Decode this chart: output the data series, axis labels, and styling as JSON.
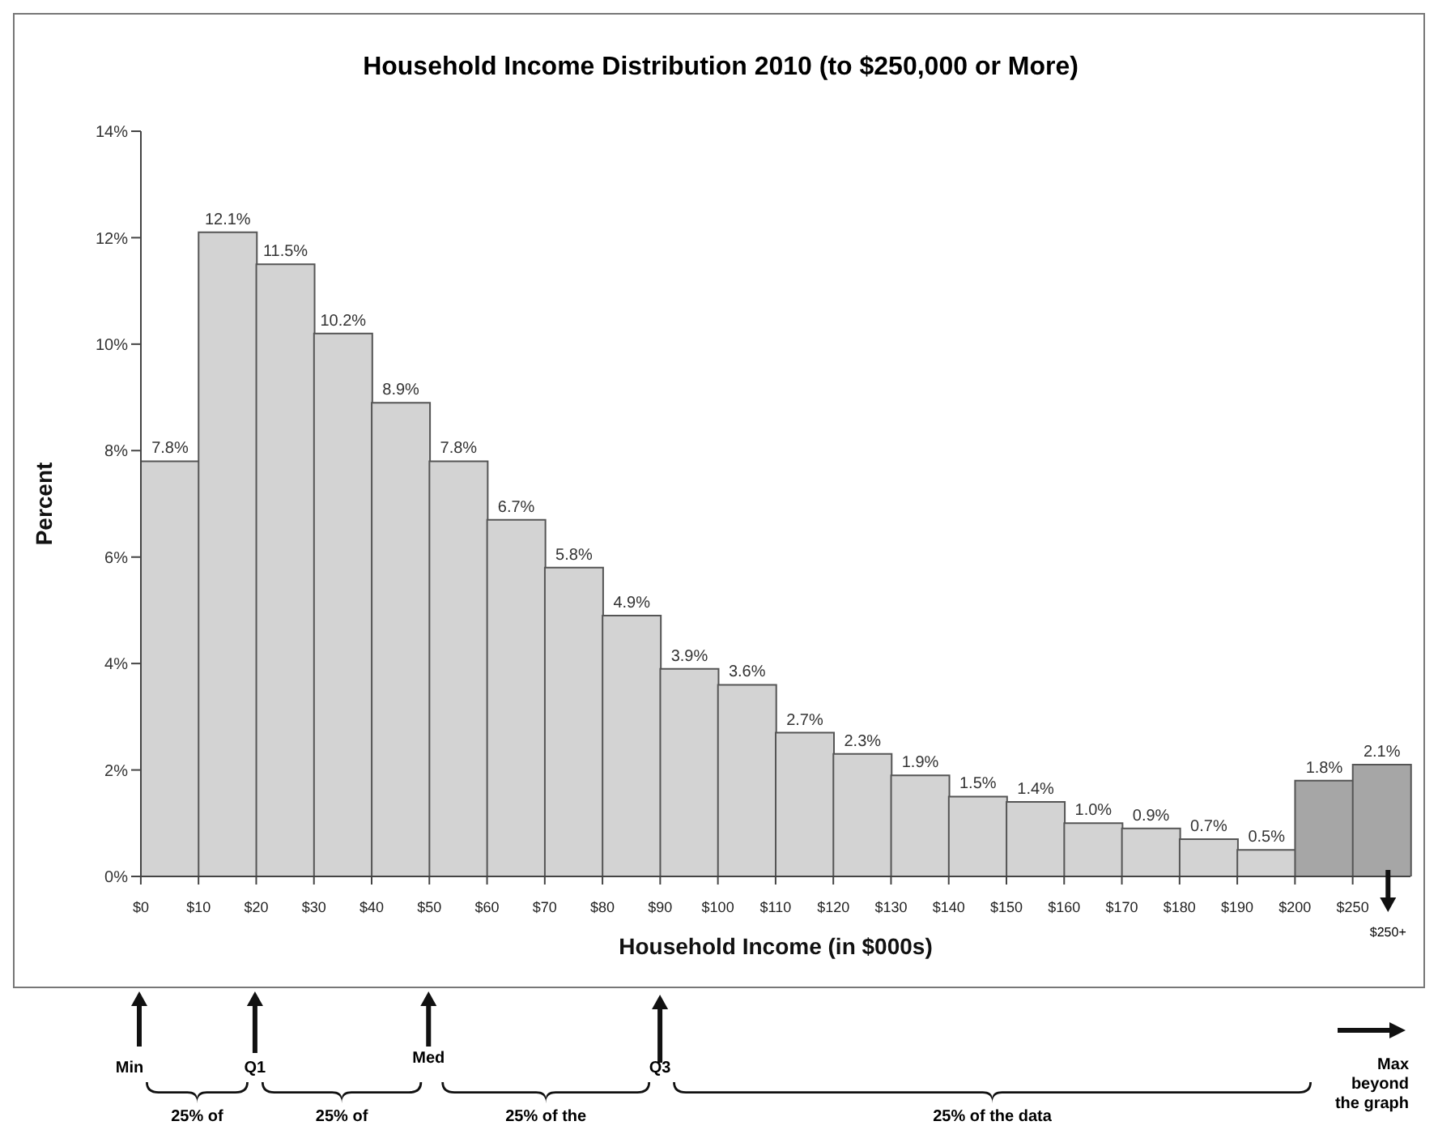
{
  "chart_data": {
    "type": "bar",
    "title": "Household Income Distribution 2010 (to $250,000 or More)",
    "xlabel": "Household Income (in $000s)",
    "ylabel": "Percent",
    "categories": [
      "$0",
      "$10",
      "$20",
      "$30",
      "$40",
      "$50",
      "$60",
      "$70",
      "$80",
      "$90",
      "$100",
      "$110",
      "$120",
      "$130",
      "$140",
      "$150",
      "$160",
      "$170",
      "$180",
      "$190",
      "$200",
      "$250"
    ],
    "values": [
      7.8,
      12.1,
      11.5,
      10.2,
      8.9,
      7.8,
      6.7,
      5.8,
      4.9,
      3.9,
      3.6,
      2.7,
      2.3,
      1.9,
      1.5,
      1.4,
      1.0,
      0.9,
      0.7,
      0.5,
      1.8,
      2.1
    ],
    "value_labels": [
      "7.8%",
      "12.1%",
      "11.5%",
      "10.2%",
      "8.9%",
      "7.8%",
      "6.7%",
      "5.8%",
      "4.9%",
      "3.9%",
      "3.6%",
      "2.7%",
      "2.3%",
      "1.9%",
      "1.5%",
      "1.4%",
      "1.0%",
      "0.9%",
      "0.7%",
      "0.5%",
      "1.8%",
      "2.1%"
    ],
    "colors": [
      "#d3d3d3",
      "#d3d3d3",
      "#d3d3d3",
      "#d3d3d3",
      "#d3d3d3",
      "#d3d3d3",
      "#d3d3d3",
      "#d3d3d3",
      "#d3d3d3",
      "#d3d3d3",
      "#d3d3d3",
      "#d3d3d3",
      "#d3d3d3",
      "#d3d3d3",
      "#d3d3d3",
      "#d3d3d3",
      "#d3d3d3",
      "#d3d3d3",
      "#d3d3d3",
      "#d3d3d3",
      "#a6a6a6",
      "#a6a6a6"
    ],
    "ylim": [
      0,
      14
    ],
    "yticks": [
      {
        "value": 0,
        "label": "0%"
      },
      {
        "value": 2,
        "label": "2%"
      },
      {
        "value": 4,
        "label": "4%"
      },
      {
        "value": 6,
        "label": "6%"
      },
      {
        "value": 8,
        "label": "8%"
      },
      {
        "value": 10,
        "label": "10%"
      },
      {
        "value": 12,
        "label": "12%"
      },
      {
        "value": 14,
        "label": "14%"
      }
    ],
    "grid": false,
    "legend": false,
    "annotations": [
      "$250+",
      "Min",
      "Q1",
      "Med",
      "Q3",
      "Max beyond the graph",
      "25% of",
      "25% of",
      "25% of the",
      "25% of the data"
    ]
  }
}
